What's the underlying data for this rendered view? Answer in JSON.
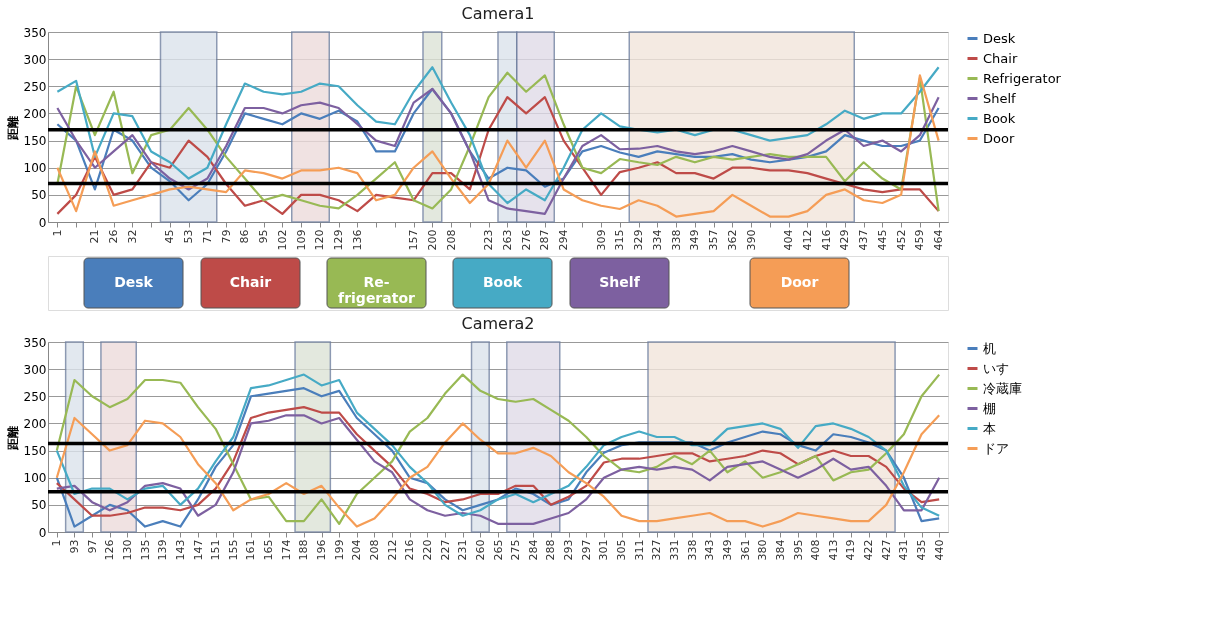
{
  "chart_data": [
    {
      "type": "line",
      "title": "Camera1",
      "ylabel": "距離",
      "ylim": [
        0,
        350
      ],
      "yticks": [
        0,
        50,
        100,
        150,
        200,
        250,
        300,
        350
      ],
      "grid": "y",
      "legend": "right",
      "categories": [
        "1",
        null,
        "21",
        "26",
        "32",
        null,
        "45",
        "53",
        "71",
        "79",
        "86",
        "95",
        "102",
        "109",
        "120",
        "129",
        "136",
        null,
        null,
        "157",
        "200",
        "208",
        null,
        "223",
        "263",
        "276",
        "287",
        "294",
        null,
        "309",
        "315",
        "329",
        "334",
        "338",
        "349",
        "357",
        "362",
        "390",
        null,
        "404",
        "412",
        "416",
        "429",
        "437",
        "445",
        "452",
        "459",
        "464"
      ],
      "series": [
        {
          "name": "Desk",
          "color": "#4a7ebb",
          "values": [
            180,
            150,
            60,
            170,
            150,
            100,
            75,
            40,
            70,
            130,
            200,
            190,
            180,
            200,
            190,
            205,
            185,
            130,
            130,
            200,
            245,
            200,
            130,
            80,
            100,
            95,
            65,
            80,
            130,
            140,
            128,
            120,
            130,
            125,
            120,
            120,
            125,
            115,
            110,
            115,
            120,
            130,
            160,
            150,
            140,
            140,
            150,
            210
          ]
        },
        {
          "name": "Chair",
          "color": "#be4b48",
          "values": [
            15,
            50,
            120,
            50,
            60,
            110,
            100,
            150,
            120,
            70,
            30,
            40,
            15,
            50,
            50,
            40,
            20,
            50,
            45,
            40,
            90,
            90,
            60,
            170,
            230,
            200,
            230,
            150,
            100,
            50,
            92,
            100,
            110,
            90,
            90,
            80,
            100,
            100,
            95,
            95,
            90,
            80,
            70,
            60,
            55,
            60,
            60,
            20
          ]
        },
        {
          "name": "Refrigerator",
          "color": "#98b954",
          "values": [
            70,
            250,
            160,
            240,
            90,
            160,
            170,
            210,
            170,
            120,
            80,
            40,
            50,
            40,
            30,
            25,
            50,
            80,
            110,
            40,
            25,
            60,
            140,
            230,
            275,
            240,
            270,
            180,
            100,
            90,
            116,
            110,
            105,
            120,
            110,
            120,
            115,
            120,
            125,
            120,
            120,
            120,
            75,
            110,
            80,
            60,
            265,
            20
          ]
        },
        {
          "name": "Shelf",
          "color": "#7d60a0",
          "values": [
            210,
            150,
            100,
            130,
            160,
            110,
            80,
            60,
            80,
            140,
            210,
            210,
            200,
            215,
            220,
            210,
            180,
            150,
            140,
            220,
            245,
            200,
            130,
            40,
            25,
            20,
            15,
            80,
            140,
            160,
            134,
            135,
            140,
            130,
            125,
            130,
            140,
            130,
            120,
            115,
            125,
            150,
            170,
            140,
            150,
            130,
            160,
            230
          ]
        },
        {
          "name": "Book",
          "color": "#46aac5",
          "values": [
            240,
            260,
            120,
            200,
            195,
            130,
            110,
            80,
            100,
            180,
            255,
            240,
            235,
            240,
            255,
            250,
            215,
            185,
            180,
            240,
            285,
            220,
            160,
            70,
            35,
            60,
            40,
            100,
            170,
            200,
            176,
            170,
            165,
            170,
            160,
            170,
            170,
            160,
            150,
            155,
            160,
            180,
            205,
            190,
            200,
            200,
            240,
            285
          ]
        },
        {
          "name": "Door",
          "color": "#f59d56",
          "values": [
            100,
            20,
            130,
            30,
            40,
            50,
            60,
            65,
            60,
            55,
            95,
            90,
            80,
            95,
            95,
            100,
            90,
            40,
            50,
            100,
            130,
            80,
            35,
            70,
            150,
            100,
            150,
            60,
            40,
            30,
            24,
            40,
            30,
            10,
            15,
            20,
            50,
            30,
            10,
            10,
            20,
            50,
            60,
            40,
            35,
            50,
            270,
            150
          ]
        }
      ],
      "ref_lines": [
        {
          "axis": "y",
          "value": 170,
          "color": "#000000"
        },
        {
          "axis": "y",
          "value": 71,
          "color": "#000000"
        }
      ],
      "bands": [
        {
          "axis": "x",
          "from": "45",
          "to": "71",
          "color": "#dce3ec"
        },
        {
          "axis": "x",
          "from": "109",
          "to": "120",
          "color": "#eddcdc"
        },
        {
          "axis": "x",
          "from": "200",
          "to": "200",
          "color": "#dde3d6"
        },
        {
          "axis": "x",
          "from": "263",
          "to": "263",
          "color": "#dce3ec"
        },
        {
          "axis": "x",
          "from": "276",
          "to": "287",
          "color": "#e0dbe8"
        },
        {
          "axis": "x",
          "from": "329",
          "to": "429",
          "color": "#f2e6dc"
        }
      ],
      "annotations": [
        "Desk",
        "Chair",
        "Re-\nfrigerator",
        "Book",
        "Shelf",
        "Door"
      ]
    },
    {
      "type": "line",
      "title": "Camera2",
      "ylabel": "距離",
      "ylim": [
        0,
        350
      ],
      "yticks": [
        0,
        50,
        100,
        150,
        200,
        250,
        300,
        350
      ],
      "grid": "y",
      "legend": "right",
      "categories": [
        "1",
        "93",
        "97",
        "126",
        "130",
        "135",
        "139",
        "143",
        "147",
        "151",
        "155",
        "161",
        "165",
        "174",
        "188",
        "196",
        "199",
        "204",
        "208",
        "212",
        "216",
        "220",
        "227",
        "231",
        "260",
        "265",
        "275",
        "284",
        "288",
        "293",
        "297",
        "301",
        "305",
        "311",
        "327",
        "331",
        "338",
        "343",
        "349",
        "361",
        "380",
        "384",
        "395",
        "408",
        "413",
        "419",
        "422",
        "427",
        "431",
        "435",
        "440"
      ],
      "series": [
        {
          "name": "机",
          "color": "#4a7ebb",
          "values": [
            100,
            10,
            30,
            50,
            40,
            10,
            20,
            10,
            60,
            120,
            160,
            250,
            255,
            260,
            265,
            250,
            260,
            210,
            180,
            150,
            100,
            90,
            60,
            40,
            50,
            60,
            80,
            70,
            50,
            60,
            110,
            146,
            160,
            165,
            165,
            165,
            165,
            150,
            165,
            175,
            185,
            180,
            160,
            150,
            180,
            175,
            165,
            150,
            100,
            20,
            25
          ]
        },
        {
          "name": "いす",
          "color": "#be4b48",
          "values": [
            90,
            60,
            30,
            30,
            35,
            45,
            45,
            40,
            50,
            80,
            130,
            210,
            220,
            225,
            230,
            220,
            220,
            180,
            150,
            120,
            80,
            70,
            55,
            60,
            70,
            70,
            85,
            85,
            50,
            65,
            85,
            128,
            135,
            135,
            140,
            145,
            145,
            130,
            135,
            140,
            150,
            145,
            125,
            140,
            150,
            140,
            140,
            120,
            80,
            55,
            60
          ]
        },
        {
          "name": "冷蔵庫",
          "color": "#98b954",
          "values": [
            150,
            280,
            250,
            230,
            245,
            280,
            280,
            275,
            230,
            190,
            125,
            60,
            65,
            20,
            20,
            60,
            15,
            70,
            100,
            130,
            185,
            210,
            255,
            290,
            260,
            245,
            240,
            245,
            225,
            205,
            175,
            140,
            115,
            110,
            120,
            140,
            125,
            150,
            110,
            130,
            100,
            110,
            125,
            140,
            95,
            110,
            115,
            145,
            180,
            250,
            290
          ]
        },
        {
          "name": "棚",
          "color": "#7d60a0",
          "values": [
            80,
            85,
            55,
            40,
            55,
            85,
            90,
            80,
            30,
            50,
            110,
            200,
            205,
            215,
            215,
            200,
            210,
            170,
            130,
            110,
            60,
            40,
            30,
            35,
            30,
            15,
            15,
            15,
            25,
            35,
            60,
            100,
            115,
            120,
            115,
            120,
            115,
            95,
            120,
            125,
            130,
            115,
            100,
            115,
            135,
            115,
            120,
            85,
            40,
            40,
            100
          ]
        },
        {
          "name": "本",
          "color": "#46aac5",
          "values": [
            150,
            70,
            80,
            80,
            60,
            80,
            85,
            50,
            80,
            130,
            175,
            265,
            270,
            280,
            290,
            270,
            280,
            220,
            190,
            160,
            120,
            90,
            50,
            30,
            40,
            60,
            70,
            55,
            70,
            85,
            120,
            160,
            175,
            185,
            175,
            175,
            160,
            160,
            190,
            195,
            200,
            190,
            155,
            195,
            200,
            190,
            175,
            150,
            85,
            45,
            30
          ]
        },
        {
          "name": "ドア",
          "color": "#f59d56",
          "values": [
            100,
            210,
            180,
            150,
            160,
            205,
            200,
            175,
            125,
            90,
            40,
            60,
            70,
            90,
            70,
            85,
            45,
            10,
            25,
            60,
            100,
            120,
            165,
            200,
            170,
            145,
            145,
            155,
            140,
            110,
            90,
            65,
            30,
            20,
            20,
            25,
            30,
            35,
            20,
            20,
            10,
            20,
            35,
            30,
            25,
            20,
            20,
            50,
            110,
            180,
            215
          ]
        }
      ],
      "ref_lines": [
        {
          "axis": "y",
          "value": 163,
          "color": "#000000"
        },
        {
          "axis": "y",
          "value": 74,
          "color": "#000000"
        }
      ],
      "bands": [
        {
          "axis": "x",
          "from": "93",
          "to": "93",
          "color": "#dce3ec"
        },
        {
          "axis": "x",
          "from": "126",
          "to": "130",
          "color": "#eddcdc"
        },
        {
          "axis": "x",
          "from": "188",
          "to": "196",
          "color": "#dde3d6"
        },
        {
          "axis": "x",
          "from": "260",
          "to": "260",
          "color": "#dce3ec"
        },
        {
          "axis": "x",
          "from": "275",
          "to": "288",
          "color": "#e0dbe8"
        },
        {
          "axis": "x",
          "from": "327",
          "to": "427",
          "color": "#f2e6dc"
        }
      ]
    }
  ]
}
